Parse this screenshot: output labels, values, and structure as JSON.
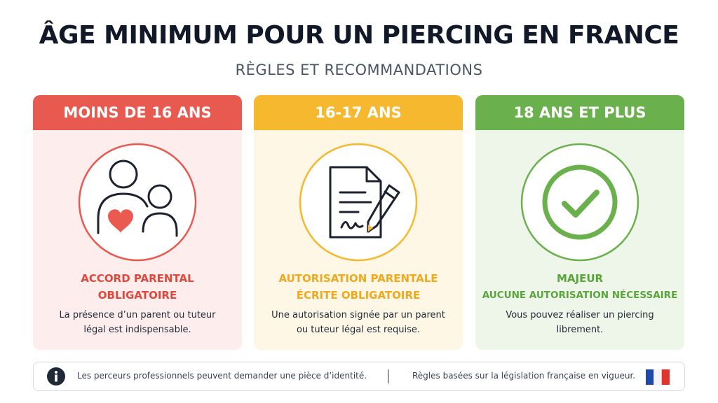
{
  "header": {
    "title": "ÂGE MINIMUM POUR UN PIERCING EN FRANCE",
    "subtitle": "RÈGLES ET RECOMMANDATIONS"
  },
  "cards": [
    {
      "heading": "MOINS DE 16 ANS",
      "status": [
        "ACCORD PARENTAL",
        "OBLIGATOIRE"
      ],
      "description": [
        "La présence d’un parent ou tuteur",
        "légal est indispensable."
      ]
    },
    {
      "heading": "16-17 ANS",
      "status": [
        "AUTORISATION PARENTALE",
        "ÉCRITE OBLIGATOIRE"
      ],
      "description": [
        "Une autorisation signée par un parent",
        "ou tuteur légal est requise."
      ]
    },
    {
      "heading": "18 ANS ET PLUS",
      "status": [
        "MAJEUR",
        "AUCUNE AUTORISATION NÉCESSAIRE"
      ],
      "description": [
        "Vous pouvez réaliser un piercing",
        "librement."
      ]
    }
  ],
  "footer": {
    "notes": [
      "Les perceurs professionnels peuvent demander une pièce d’identité.",
      "Règles basées sur la législation française en vigueur."
    ]
  }
}
